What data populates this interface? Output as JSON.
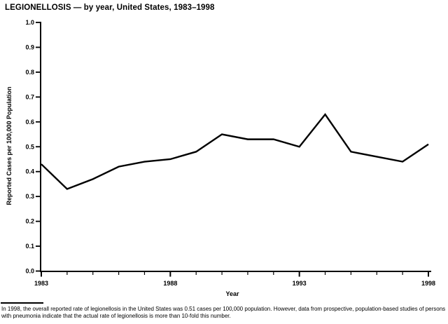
{
  "page": {
    "footnote": "In 1998, the overall reported rate of legionellosis in the United States was 0.51 cases per 100,000 population. However, data from prospective, population-based studies of persons with pneumonia indicate that the actual rate of legionellosis is more than 10-fold this number."
  },
  "chart_data": {
    "type": "line",
    "title": "LEGIONELLOSIS — by year, United States, 1983–1998",
    "xlabel": "Year",
    "ylabel": "Reported Cases per 100,000 Population",
    "x": [
      1983,
      1984,
      1985,
      1986,
      1987,
      1988,
      1989,
      1990,
      1991,
      1992,
      1993,
      1994,
      1995,
      1996,
      1997,
      1998
    ],
    "values": [
      0.43,
      0.33,
      0.37,
      0.42,
      0.44,
      0.45,
      0.48,
      0.55,
      0.53,
      0.53,
      0.5,
      0.63,
      0.48,
      0.46,
      0.44,
      0.51
    ],
    "ylim": [
      0.0,
      1.0
    ],
    "ytick_interval": 0.1,
    "xticks_labeled": [
      1983,
      1988,
      1993,
      1998
    ],
    "grid": false,
    "legend": false,
    "line_color": "#000000",
    "background": "#ffffff"
  }
}
